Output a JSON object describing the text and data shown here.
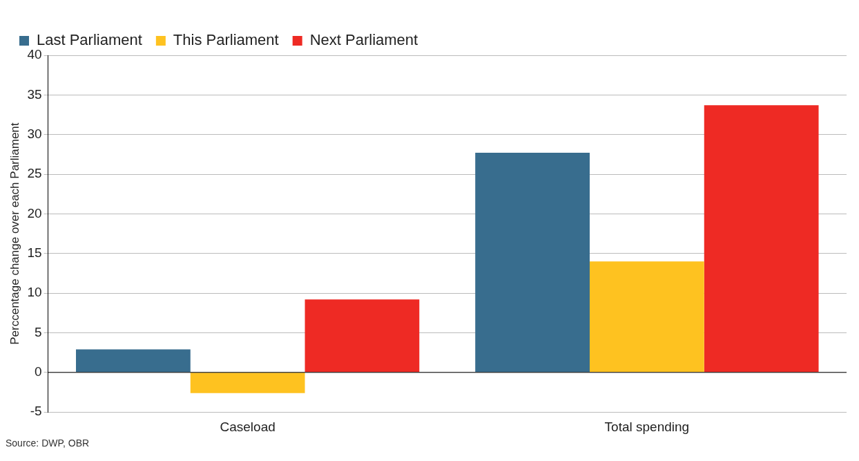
{
  "chart_data": {
    "type": "bar",
    "ylabel": "Perccentage change over each Parliament",
    "categories": [
      "Caseload",
      "Total spending"
    ],
    "series": [
      {
        "name": "Last Parliament",
        "color": "#386d8e",
        "values": [
          2.9,
          27.7
        ]
      },
      {
        "name": "This Parliament",
        "color": "#fec220",
        "values": [
          -2.6,
          14.0
        ]
      },
      {
        "name": "Next Parliament",
        "color": "#ee2a24",
        "values": [
          9.2,
          33.7
        ]
      }
    ],
    "ylim": [
      -5,
      40
    ],
    "yticks": [
      -5,
      0,
      5,
      10,
      15,
      20,
      25,
      30,
      35,
      40
    ],
    "grid": "y",
    "legend": "top left",
    "annotations": [
      "Source: DWP, OBR"
    ]
  }
}
